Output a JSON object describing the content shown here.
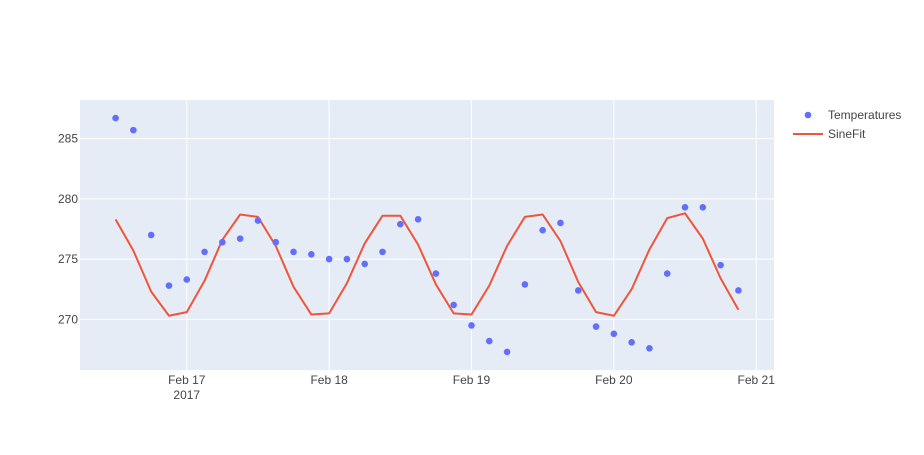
{
  "colors": {
    "plot_background": "#e5ecf6",
    "grid": "#ffffff",
    "scatter": "#636efa",
    "line": "#ef553b",
    "text": "#444444"
  },
  "legend": {
    "position": "right",
    "items": [
      {
        "label": "Temperatures",
        "symbol": "marker"
      },
      {
        "label": "SineFit",
        "symbol": "line"
      }
    ]
  },
  "chart_data": {
    "type": "scatter",
    "title": "",
    "xlabel": "",
    "ylabel": "",
    "x_range": [
      "2017-02-16 06:00",
      "2017-02-21 03:00"
    ],
    "ylim": [
      265.8,
      288.2
    ],
    "grid": true,
    "x_ticks": [
      {
        "label": "Feb 17",
        "sublabel": "2017",
        "value": "2017-02-17 00:00"
      },
      {
        "label": "Feb 18",
        "sublabel": "",
        "value": "2017-02-18 00:00"
      },
      {
        "label": "Feb 19",
        "sublabel": "",
        "value": "2017-02-19 00:00"
      },
      {
        "label": "Feb 20",
        "sublabel": "",
        "value": "2017-02-20 00:00"
      },
      {
        "label": "Feb 21",
        "sublabel": "",
        "value": "2017-02-21 00:00"
      }
    ],
    "y_ticks": [
      270,
      275,
      280,
      285
    ],
    "x": [
      "2017-02-16 12:00",
      "2017-02-16 15:00",
      "2017-02-16 18:00",
      "2017-02-16 21:00",
      "2017-02-17 00:00",
      "2017-02-17 03:00",
      "2017-02-17 06:00",
      "2017-02-17 09:00",
      "2017-02-17 12:00",
      "2017-02-17 15:00",
      "2017-02-17 18:00",
      "2017-02-17 21:00",
      "2017-02-18 00:00",
      "2017-02-18 03:00",
      "2017-02-18 06:00",
      "2017-02-18 09:00",
      "2017-02-18 12:00",
      "2017-02-18 15:00",
      "2017-02-18 18:00",
      "2017-02-18 21:00",
      "2017-02-19 00:00",
      "2017-02-19 03:00",
      "2017-02-19 06:00",
      "2017-02-19 09:00",
      "2017-02-19 12:00",
      "2017-02-19 15:00",
      "2017-02-19 18:00",
      "2017-02-19 21:00",
      "2017-02-20 00:00",
      "2017-02-20 03:00",
      "2017-02-20 06:00",
      "2017-02-20 09:00",
      "2017-02-20 12:00",
      "2017-02-20 15:00",
      "2017-02-20 18:00",
      "2017-02-20 21:00"
    ],
    "series": [
      {
        "name": "Temperatures",
        "mode": "markers",
        "values": [
          286.7,
          285.7,
          277.0,
          272.8,
          273.3,
          275.6,
          276.4,
          276.7,
          278.2,
          276.4,
          275.6,
          275.4,
          275.0,
          275.0,
          274.6,
          275.6,
          277.9,
          278.3,
          273.8,
          271.2,
          269.5,
          268.2,
          267.3,
          272.9,
          277.4,
          278.0,
          272.4,
          269.4,
          268.8,
          268.1,
          267.6,
          273.8,
          279.3,
          279.3,
          274.5,
          272.4
        ]
      },
      {
        "name": "SineFit",
        "mode": "lines",
        "values": [
          278.3,
          275.7,
          272.3,
          270.3,
          270.6,
          273.2,
          276.6,
          278.7,
          278.5,
          276.1,
          272.7,
          270.4,
          270.5,
          273.0,
          276.3,
          278.6,
          278.6,
          276.2,
          272.9,
          270.5,
          270.4,
          272.8,
          276.1,
          278.5,
          278.7,
          276.5,
          273.1,
          270.6,
          270.3,
          272.5,
          275.8,
          278.4,
          278.8,
          276.7,
          273.4,
          270.8
        ]
      }
    ]
  }
}
